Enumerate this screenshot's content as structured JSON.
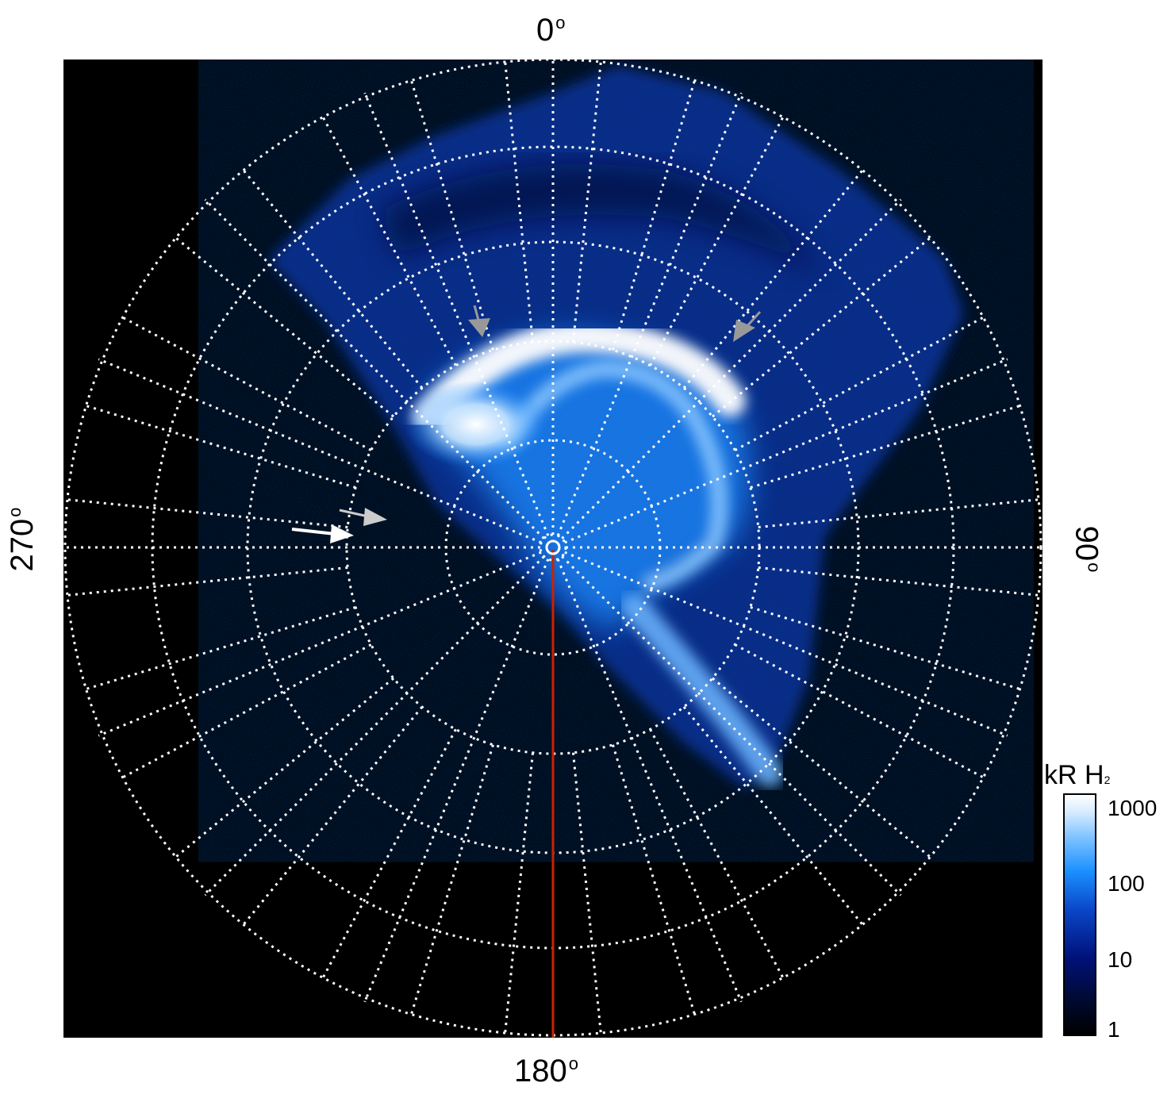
{
  "labels": {
    "top": "0",
    "bottom": "180",
    "left": "270",
    "right": "90",
    "degree_symbol": "o"
  },
  "colorbar": {
    "title": "kR H",
    "title_sub": "2",
    "ticks": [
      "1000",
      "100",
      "10",
      "1"
    ],
    "scale": "log"
  },
  "colors": {
    "background": "#000000",
    "grid": "#ffffff",
    "emission": "#1a8cff",
    "meridian_line": "#cc2200",
    "arrow_grey": "#999999",
    "arrow_white": "#ffffff"
  }
}
